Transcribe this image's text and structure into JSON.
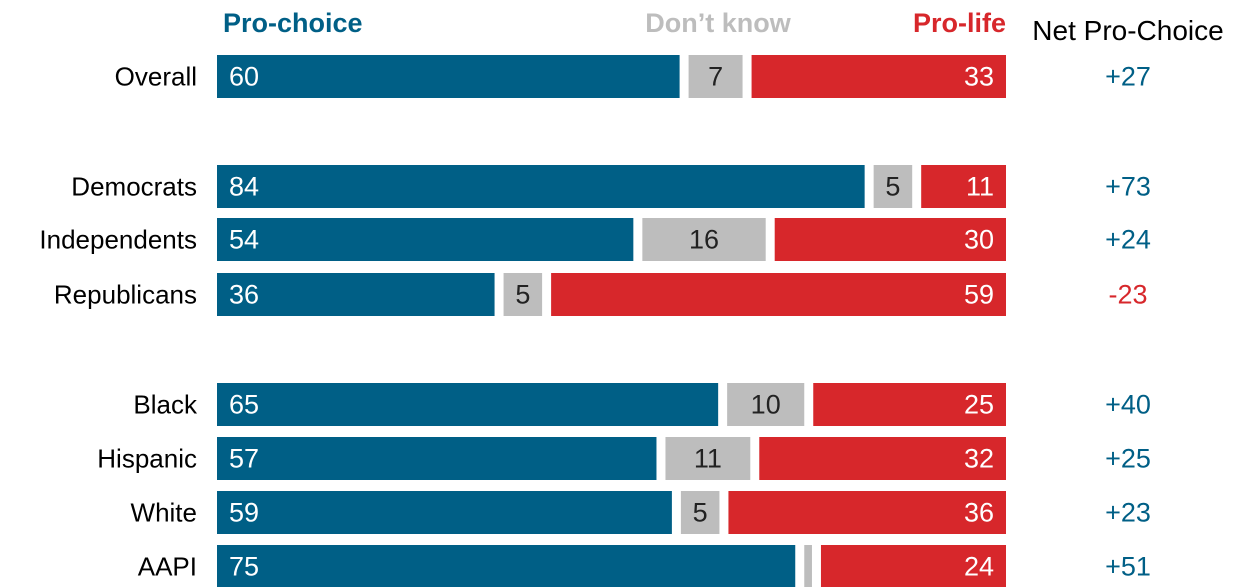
{
  "chart_data": {
    "type": "bar",
    "orientation": "horizontal",
    "stacked": true,
    "headers": {
      "pro_choice": "Pro-choice",
      "dont_know": "Don’t know",
      "pro_life": "Pro-life",
      "net": "Net Pro-Choice"
    },
    "colors": {
      "pro_choice": "#005f86",
      "dont_know": "#bdbdbd",
      "pro_life": "#d7272b",
      "net_positive": "#005f86",
      "net_negative": "#d7272b"
    },
    "groups": [
      [
        "Overall"
      ],
      [
        "Democrats",
        "Independents",
        "Republicans"
      ],
      [
        "Black",
        "Hispanic",
        "White",
        "AAPI"
      ]
    ],
    "categories": [
      "Overall",
      "Democrats",
      "Independents",
      "Republicans",
      "Black",
      "Hispanic",
      "White",
      "AAPI"
    ],
    "series": [
      {
        "name": "Pro-choice",
        "values": [
          60,
          84,
          54,
          36,
          65,
          57,
          59,
          75
        ]
      },
      {
        "name": "Don’t know",
        "values": [
          7,
          5,
          16,
          5,
          10,
          11,
          5,
          1
        ]
      },
      {
        "name": "Pro-life",
        "values": [
          33,
          11,
          30,
          59,
          25,
          32,
          36,
          24
        ]
      }
    ],
    "value_labels": {
      "pro_choice": [
        "60",
        "84",
        "54",
        "36",
        "65",
        "57",
        "59",
        "75"
      ],
      "dont_know": [
        "7",
        "5",
        "16",
        "5",
        "10",
        "11",
        "5",
        ""
      ],
      "pro_life": [
        "33",
        "11",
        "30",
        "59",
        "25",
        "32",
        "36",
        "24"
      ]
    },
    "net": [
      "+27",
      "+73",
      "+24",
      "-23",
      "+40",
      "+25",
      "+23",
      "+51"
    ],
    "xlim": [
      0,
      100
    ]
  }
}
